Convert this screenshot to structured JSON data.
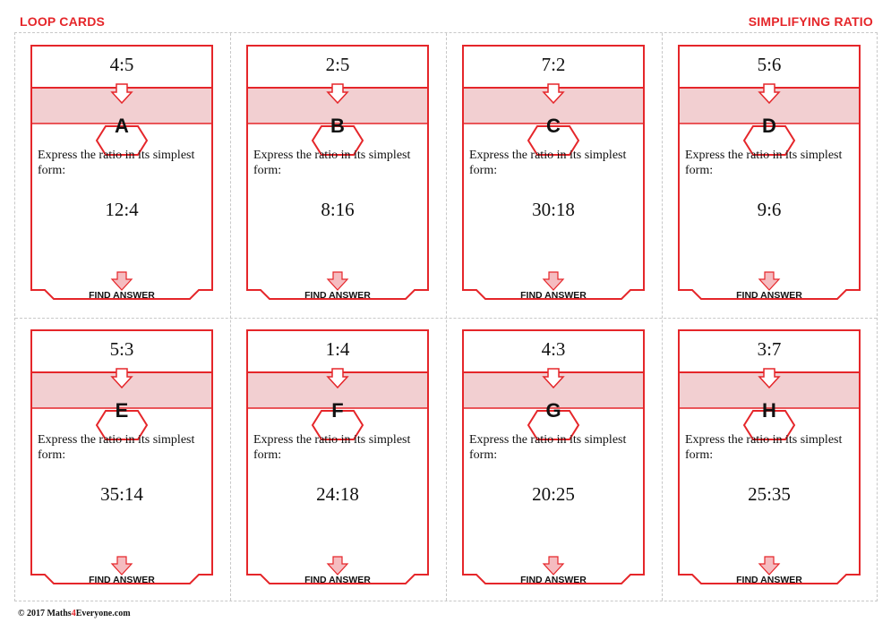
{
  "header": {
    "left_title": "LOOP CARDS",
    "right_title": "SIMPLIFYING RATIO"
  },
  "cards": [
    {
      "answer": "4:5",
      "letter": "A",
      "instruction": "Express the ratio in its simplest form:",
      "question": "12:4",
      "footer": "FIND ANSWER"
    },
    {
      "answer": "2:5",
      "letter": "B",
      "instruction": "Express the ratio in its simplest form:",
      "question": "8:16",
      "footer": "FIND ANSWER"
    },
    {
      "answer": "7:2",
      "letter": "C",
      "instruction": "Express the ratio in its simplest form:",
      "question": "30:18",
      "footer": "FIND ANSWER"
    },
    {
      "answer": "5:6",
      "letter": "D",
      "instruction": "Express the ratio in its simplest form:",
      "question": "9:6",
      "footer": "FIND ANSWER"
    },
    {
      "answer": "5:3",
      "letter": "E",
      "instruction": "Express the ratio in its simplest form:",
      "question": "35:14",
      "footer": "FIND ANSWER"
    },
    {
      "answer": "1:4",
      "letter": "F",
      "instruction": "Express the ratio in its simplest form:",
      "question": "24:18",
      "footer": "FIND ANSWER"
    },
    {
      "answer": "4:3",
      "letter": "G",
      "instruction": "Express the ratio in its simplest form:",
      "question": "20:25",
      "footer": "FIND ANSWER"
    },
    {
      "answer": "3:7",
      "letter": "H",
      "instruction": "Express the ratio in its simplest form:",
      "question": "25:35",
      "footer": "FIND ANSWER"
    }
  ],
  "footer": {
    "copyright_pre": "© 2017 Maths",
    "copyright_digit": "4",
    "copyright_post": "Everyone.com"
  },
  "colors": {
    "accent": "#e5262a",
    "band_fill": "#f2cfd1",
    "arrow_fill": "#f5bcc0"
  }
}
